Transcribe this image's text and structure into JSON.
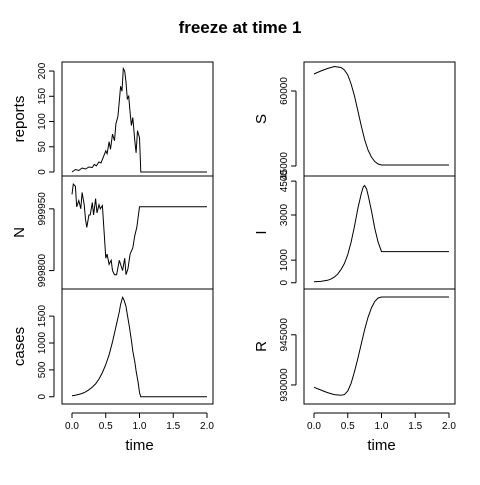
{
  "title": "freeze at time 1",
  "chart_data": [
    {
      "type": "line",
      "column": "left",
      "xlabel": "time",
      "xlim": [
        0,
        2
      ],
      "xticks": [
        0.0,
        0.5,
        1.0,
        1.5,
        2.0
      ],
      "xtick_labels": [
        "0.0",
        "0.5",
        "1.0",
        "1.5",
        "2.0"
      ],
      "panels": [
        {
          "name": "reports",
          "ylabel": "reports",
          "ylim": [
            0,
            210
          ],
          "yticks": [
            0,
            50,
            100,
            150,
            200
          ],
          "ytick_labels": [
            "0",
            "50",
            "100",
            "150",
            "200"
          ],
          "x": [
            0.0,
            0.05,
            0.1,
            0.15,
            0.2,
            0.25,
            0.3,
            0.33,
            0.36,
            0.4,
            0.43,
            0.46,
            0.5,
            0.52,
            0.55,
            0.57,
            0.6,
            0.63,
            0.65,
            0.68,
            0.7,
            0.72,
            0.74,
            0.76,
            0.78,
            0.8,
            0.82,
            0.84,
            0.86,
            0.88,
            0.9,
            0.93,
            0.95,
            0.97,
            1.0,
            1.02,
            1.1,
            1.5,
            2.0
          ],
          "y": [
            0,
            5,
            3,
            8,
            6,
            10,
            9,
            15,
            12,
            20,
            18,
            28,
            42,
            36,
            60,
            45,
            75,
            62,
            95,
            110,
            140,
            170,
            160,
            205,
            200,
            178,
            145,
            150,
            118,
            92,
            108,
            62,
            38,
            82,
            68,
            0,
            0,
            0,
            0
          ]
        },
        {
          "name": "N",
          "ylabel": "N",
          "ylim": [
            999765,
            1000020
          ],
          "yticks": [
            999800,
            999950
          ],
          "ytick_labels": [
            "999800",
            "999950"
          ],
          "x": [
            0.0,
            0.02,
            0.05,
            0.07,
            0.1,
            0.13,
            0.15,
            0.18,
            0.2,
            0.22,
            0.25,
            0.27,
            0.3,
            0.32,
            0.35,
            0.37,
            0.4,
            0.42,
            0.45,
            0.5,
            0.52,
            0.55,
            0.58,
            0.6,
            0.63,
            0.66,
            0.7,
            0.75,
            0.78,
            0.8,
            0.83,
            0.86,
            0.9,
            0.93,
            0.96,
            1.0,
            1.05,
            1.5,
            2.0
          ],
          "y": [
            999985,
            1000010,
            1000005,
            999955,
            999970,
            999950,
            999990,
            999960,
            999925,
            999905,
            999935,
            999935,
            999965,
            999935,
            999975,
            999940,
            999960,
            999950,
            999958,
            999830,
            999840,
            999815,
            999825,
            999800,
            999790,
            999790,
            999825,
            999800,
            999830,
            999790,
            999805,
            999840,
            999855,
            999885,
            999905,
            999955,
            999955,
            999955,
            999955
          ]
        },
        {
          "name": "cases",
          "ylabel": "cases",
          "ylim": [
            -60,
            1930
          ],
          "yticks": [
            0,
            500,
            1000,
            1500
          ],
          "ytick_labels": [
            "0",
            "500",
            "1000",
            "1500"
          ],
          "x": [
            0.0,
            0.05,
            0.1,
            0.15,
            0.2,
            0.25,
            0.3,
            0.35,
            0.4,
            0.45,
            0.5,
            0.55,
            0.6,
            0.65,
            0.7,
            0.72,
            0.75,
            0.77,
            0.8,
            0.82,
            0.85,
            0.88,
            0.9,
            0.93,
            0.95,
            0.98,
            1.0,
            1.02,
            1.1,
            1.5,
            2.0
          ],
          "y": [
            20,
            30,
            45,
            60,
            90,
            130,
            180,
            240,
            330,
            450,
            600,
            780,
            1020,
            1300,
            1580,
            1720,
            1850,
            1800,
            1680,
            1530,
            1300,
            1050,
            850,
            650,
            480,
            260,
            80,
            0,
            0,
            0,
            0
          ]
        }
      ]
    },
    {
      "type": "line",
      "column": "right",
      "xlabel": "time",
      "xlim": [
        0,
        2
      ],
      "xticks": [
        0.0,
        0.5,
        1.0,
        1.5,
        2.0
      ],
      "xtick_labels": [
        "0.0",
        "0.5",
        "1.0",
        "1.5",
        "2.0"
      ],
      "panels": [
        {
          "name": "S",
          "ylabel": "S",
          "ylim": [
            43800,
            65000
          ],
          "yticks": [
            45000,
            60000
          ],
          "ytick_labels": [
            "45000",
            "60000"
          ],
          "x": [
            0.0,
            0.1,
            0.2,
            0.3,
            0.4,
            0.45,
            0.5,
            0.55,
            0.6,
            0.65,
            0.7,
            0.75,
            0.8,
            0.85,
            0.9,
            0.95,
            1.0,
            1.1,
            1.5,
            2.0
          ],
          "y": [
            63400,
            64000,
            64500,
            64900,
            64700,
            64200,
            63200,
            61400,
            59000,
            56000,
            53000,
            50300,
            48200,
            46800,
            45900,
            45400,
            45200,
            45200,
            45200,
            45200
          ]
        },
        {
          "name": "I",
          "ylabel": "I",
          "ylim": [
            -100,
            4550
          ],
          "yticks": [
            0,
            1000,
            3000,
            4500
          ],
          "ytick_labels": [
            "0",
            "1000",
            "3000",
            "4500"
          ],
          "x": [
            0.0,
            0.1,
            0.2,
            0.25,
            0.3,
            0.35,
            0.4,
            0.45,
            0.5,
            0.55,
            0.6,
            0.65,
            0.7,
            0.73,
            0.75,
            0.78,
            0.8,
            0.85,
            0.9,
            0.95,
            1.0,
            1.05,
            1.5,
            2.0
          ],
          "y": [
            40,
            60,
            110,
            160,
            250,
            380,
            580,
            850,
            1250,
            1800,
            2500,
            3300,
            3950,
            4250,
            4300,
            4150,
            3900,
            3200,
            2400,
            1800,
            1380,
            1380,
            1380,
            1380
          ]
        },
        {
          "name": "R",
          "ylabel": "R",
          "ylim": [
            925500,
            957500
          ],
          "yticks": [
            930000,
            945000
          ],
          "ytick_labels": [
            "930000",
            "945000"
          ],
          "x": [
            0.0,
            0.1,
            0.2,
            0.3,
            0.4,
            0.45,
            0.5,
            0.55,
            0.6,
            0.65,
            0.7,
            0.75,
            0.8,
            0.85,
            0.9,
            0.95,
            1.0,
            1.1,
            1.5,
            2.0
          ],
          "y": [
            929300,
            928500,
            927700,
            927100,
            926900,
            927100,
            928200,
            930500,
            934000,
            938000,
            942300,
            946500,
            950200,
            953000,
            955000,
            956000,
            956300,
            956300,
            956300,
            956300
          ]
        }
      ]
    }
  ]
}
